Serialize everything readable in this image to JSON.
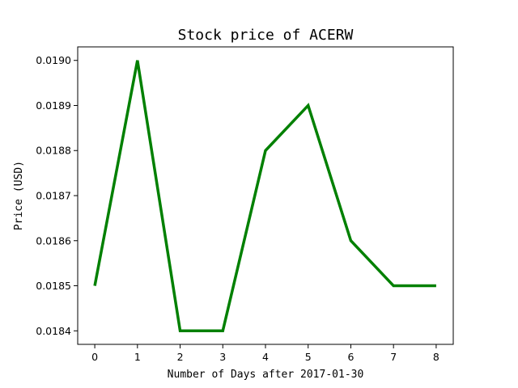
{
  "chart_data": {
    "type": "line",
    "title": "Stock price of ACERW",
    "xlabel": "Number of Days after 2017-01-30",
    "ylabel": "Price (USD)",
    "x": [
      0,
      1,
      2,
      3,
      4,
      5,
      6,
      7,
      8
    ],
    "series": [
      {
        "values": [
          0.0185,
          0.019,
          0.0184,
          0.0184,
          0.0188,
          0.0189,
          0.0186,
          0.0185,
          0.0185
        ],
        "color": "#008000"
      }
    ],
    "xlim": [
      -0.4,
      8.4
    ],
    "ylim": [
      0.01837,
      0.01903
    ],
    "xticks": [
      0,
      1,
      2,
      3,
      4,
      5,
      6,
      7,
      8
    ],
    "yticks": [
      0.0184,
      0.0185,
      0.0186,
      0.0187,
      0.0188,
      0.0189,
      0.019
    ],
    "ytick_labels": [
      "0.0184",
      "0.0185",
      "0.0186",
      "0.0187",
      "0.0188",
      "0.0189",
      "0.0190"
    ],
    "grid": false,
    "legend": "none"
  }
}
